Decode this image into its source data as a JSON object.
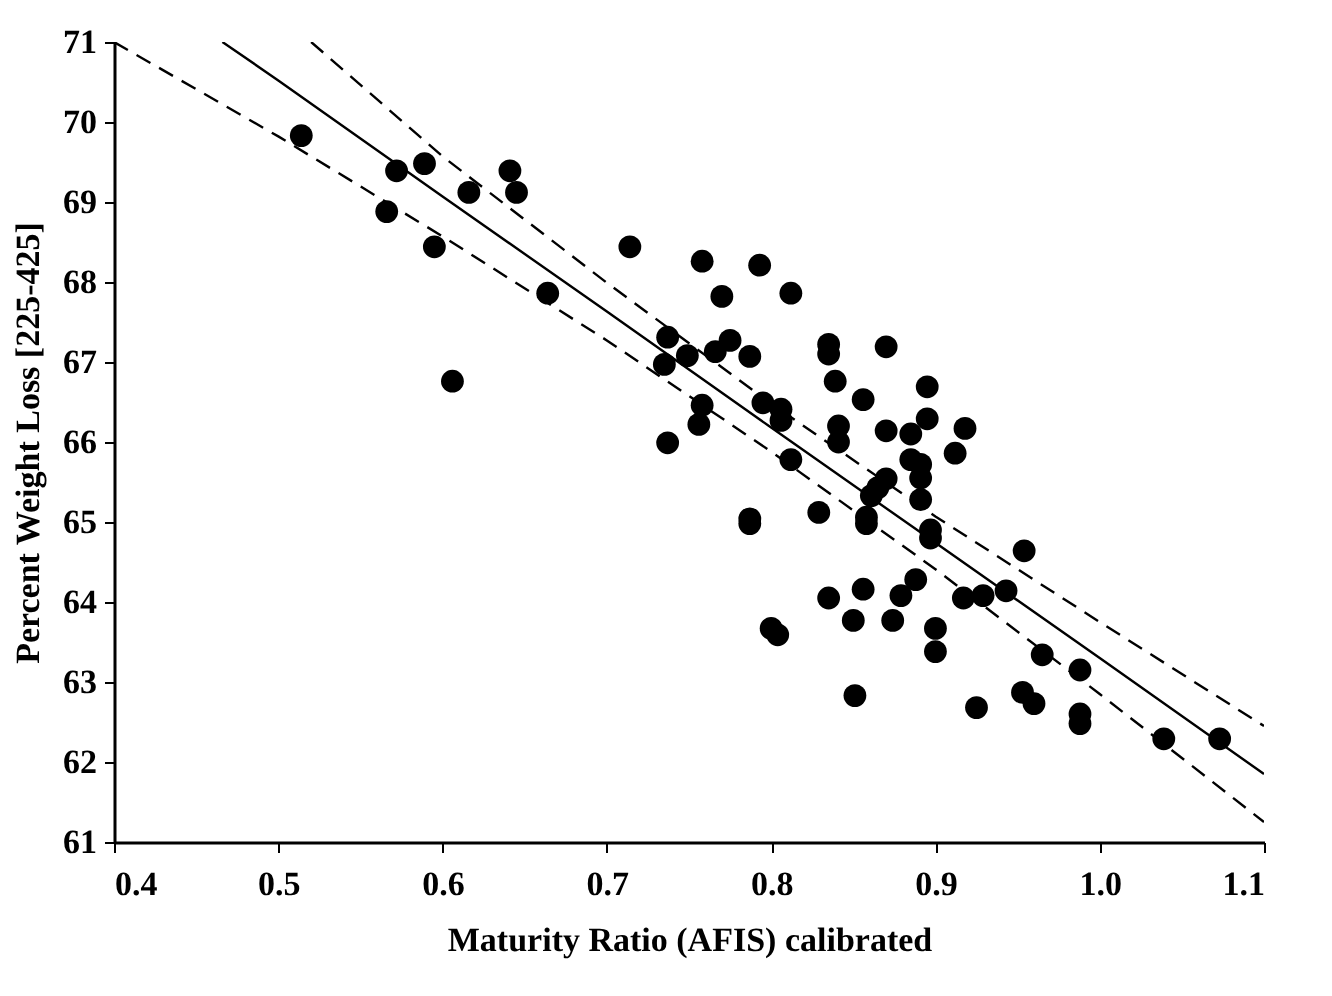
{
  "chart_data": {
    "type": "scatter",
    "xlabel": "Maturity Ratio (AFIS) calibrated",
    "ylabel": "Percent Weight Loss [225-425]",
    "xlim": [
      0.4,
      1.1
    ],
    "xticks": [
      {
        "value": 0.4,
        "label": "0.4"
      },
      {
        "value": 0.5,
        "label": "0.5"
      },
      {
        "value": 0.6,
        "label": "0.6"
      },
      {
        "value": 0.7,
        "label": "0.7"
      },
      {
        "value": 0.8,
        "label": "0.8"
      },
      {
        "value": 0.9,
        "label": "0.9"
      },
      {
        "value": 1.0,
        "label": "1.0"
      },
      {
        "value": 1.1,
        "label": "1.1"
      }
    ],
    "ylim": [
      61,
      71
    ],
    "yticks": [
      61,
      62,
      63,
      64,
      65,
      66,
      67,
      68,
      69,
      70,
      71
    ],
    "grid": false,
    "series": [
      {
        "type": "scatter",
        "color": "#000000",
        "marker": "circle",
        "x": [
          0.514,
          0.572,
          0.589,
          0.566,
          0.595,
          0.616,
          0.641,
          0.645,
          0.664,
          0.714,
          0.606,
          0.758,
          0.793,
          0.77,
          0.812,
          0.737,
          0.749,
          0.735,
          0.766,
          0.775,
          0.787,
          0.835,
          0.835,
          0.87,
          0.839,
          0.856,
          0.895,
          0.758,
          0.756,
          0.737,
          0.795,
          0.806,
          0.806,
          0.841,
          0.841,
          0.87,
          0.885,
          0.895,
          0.918,
          0.912,
          0.812,
          0.885,
          0.891,
          0.891,
          0.87,
          0.865,
          0.861,
          0.891,
          0.897,
          0.897,
          0.787,
          0.787,
          0.829,
          0.858,
          0.858,
          0.954,
          0.835,
          0.856,
          0.879,
          0.888,
          0.85,
          0.874,
          0.8,
          0.804,
          0.9,
          0.9,
          0.917,
          0.929,
          0.943,
          0.965,
          0.988,
          0.851,
          0.925,
          0.953,
          0.96,
          0.988,
          0.988,
          1.039,
          1.073
        ],
        "values": [
          69.83,
          69.39,
          69.48,
          68.88,
          68.44,
          69.12,
          69.39,
          69.12,
          67.86,
          68.44,
          66.76,
          68.26,
          68.21,
          67.82,
          67.86,
          67.31,
          67.08,
          66.97,
          67.13,
          67.27,
          67.07,
          67.22,
          67.1,
          67.19,
          66.76,
          66.53,
          66.69,
          66.46,
          66.22,
          65.99,
          66.49,
          66.41,
          66.27,
          66.2,
          66.0,
          66.14,
          66.1,
          66.29,
          66.17,
          65.86,
          65.78,
          65.78,
          65.72,
          65.55,
          65.54,
          65.43,
          65.33,
          65.28,
          64.9,
          64.8,
          65.04,
          64.98,
          65.12,
          65.06,
          64.98,
          64.64,
          64.05,
          64.16,
          64.08,
          64.28,
          63.77,
          63.77,
          63.67,
          63.59,
          63.67,
          63.38,
          64.05,
          64.08,
          64.14,
          63.34,
          63.15,
          62.83,
          62.68,
          62.87,
          62.73,
          62.6,
          62.48,
          62.29,
          62.29
        ]
      },
      {
        "type": "line",
        "color": "#000000",
        "line_style": "solid",
        "x": [
          0.466,
          0.5,
          0.6,
          0.7,
          0.8,
          0.9,
          1.0,
          1.1
        ],
        "values": [
          71.0,
          70.52,
          69.07,
          67.63,
          66.18,
          64.74,
          63.3,
          61.85
        ]
      },
      {
        "type": "line",
        "color": "#000000",
        "line_style": "dashed",
        "x": [
          0.52,
          0.6,
          0.7,
          0.8,
          0.9,
          1.0,
          1.1
        ],
        "values": [
          71.0,
          69.57,
          67.99,
          66.48,
          65.07,
          63.75,
          62.45
        ]
      },
      {
        "type": "line",
        "color": "#000000",
        "line_style": "dashed",
        "x": [
          0.4,
          0.5,
          0.6,
          0.7,
          0.8,
          0.9,
          1.0,
          1.1
        ],
        "values": [
          71.0,
          69.82,
          68.57,
          67.27,
          65.88,
          64.41,
          62.85,
          61.25
        ]
      }
    ]
  }
}
